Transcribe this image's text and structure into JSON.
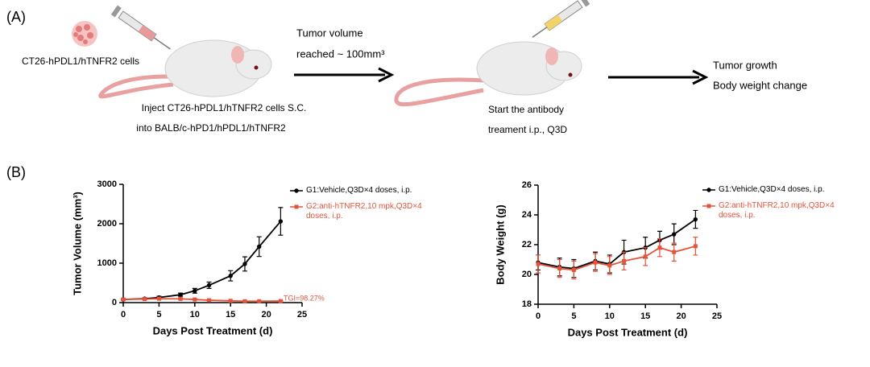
{
  "panel_a": {
    "label": "(A)",
    "cells_label": "CT26-hPDL1/hTNFR2 cells",
    "inject_line1": "Inject CT26-hPDL1/hTNFR2 cells  S.C.",
    "inject_line2": "into BALB/c-hPD1/hPDL1/hTNFR2",
    "arrow1_line1": "Tumor volume",
    "arrow1_line2": "reached ~ 100mm³",
    "treat_line1": "Start the antibody",
    "treat_line2": "treament i.p., Q3D",
    "out_line1": "Tumor growth",
    "out_line2": "Body weight change"
  },
  "panel_b": {
    "label": "(B)"
  },
  "chart_data": [
    {
      "type": "line",
      "ylabel": "Tumor Volume (mm³)",
      "xlabel": "Days Post Treatment (d)",
      "x": [
        0,
        3,
        5,
        8,
        10,
        12,
        15,
        17,
        19,
        22
      ],
      "xlim": [
        0,
        25
      ],
      "xticks": [
        0,
        5,
        10,
        15,
        20,
        25
      ],
      "ylim": [
        0,
        3000
      ],
      "yticks": [
        0,
        1000,
        2000,
        3000
      ],
      "annotation": "TGI=98.27%",
      "series": [
        {
          "name": "G1:Vehicle,Q3D×4 doses, i.p.",
          "color": "#000000",
          "marker": "circle",
          "values": [
            80,
            100,
            130,
            200,
            300,
            440,
            680,
            980,
            1420,
            2060
          ],
          "errors": [
            20,
            20,
            30,
            40,
            60,
            80,
            130,
            180,
            250,
            350
          ]
        },
        {
          "name": "G2:anti-hTNFR2,10 mpk,Q3D×4 doses, i.p.",
          "color": "#e5533a",
          "marker": "square",
          "values": [
            80,
            90,
            100,
            95,
            80,
            60,
            45,
            35,
            35,
            40
          ],
          "errors": [
            15,
            15,
            15,
            15,
            12,
            10,
            10,
            8,
            8,
            10
          ]
        }
      ]
    },
    {
      "type": "line",
      "ylabel": "Body Weight (g)",
      "xlabel": "Days Post Treatment (d)",
      "x": [
        0,
        3,
        5,
        8,
        10,
        12,
        15,
        17,
        19,
        22
      ],
      "xlim": [
        0,
        25
      ],
      "xticks": [
        0,
        5,
        10,
        15,
        20,
        25
      ],
      "ylim": [
        18,
        26
      ],
      "yticks": [
        18,
        20,
        22,
        24,
        26
      ],
      "series": [
        {
          "name": "G1:Vehicle,Q3D×4 doses, i.p.",
          "color": "#000000",
          "marker": "circle",
          "values": [
            20.8,
            20.5,
            20.4,
            20.9,
            20.7,
            21.5,
            21.8,
            22.3,
            22.7,
            23.7
          ],
          "errors": [
            0.5,
            0.6,
            0.6,
            0.6,
            0.6,
            0.8,
            0.7,
            0.6,
            0.7,
            0.6
          ]
        },
        {
          "name": "G2:anti-hTNFR2,10 mpk,Q3D×4 doses, i.p.",
          "color": "#e5533a",
          "marker": "square",
          "values": [
            20.7,
            20.4,
            20.3,
            20.8,
            20.6,
            20.9,
            21.2,
            21.8,
            21.5,
            21.9
          ],
          "errors": [
            0.6,
            0.6,
            0.6,
            0.6,
            0.6,
            0.6,
            0.6,
            0.6,
            0.6,
            0.6
          ]
        }
      ]
    }
  ]
}
